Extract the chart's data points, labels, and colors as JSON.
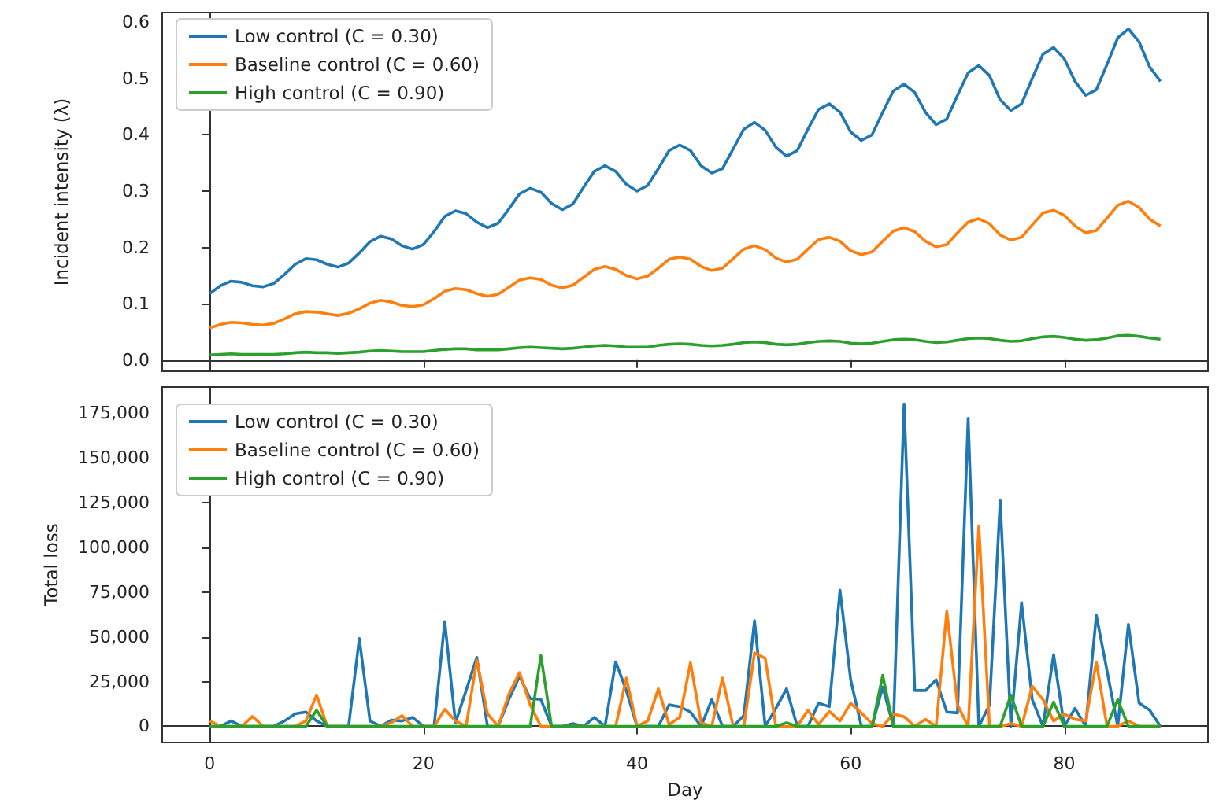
{
  "chart_data": [
    {
      "type": "line",
      "ylabel": "Incident intensity (λ)",
      "x": [
        0,
        1,
        2,
        3,
        4,
        5,
        6,
        7,
        8,
        9,
        10,
        11,
        12,
        13,
        14,
        15,
        16,
        17,
        18,
        19,
        20,
        21,
        22,
        23,
        24,
        25,
        26,
        27,
        28,
        29,
        30,
        31,
        32,
        33,
        34,
        35,
        36,
        37,
        38,
        39,
        40,
        41,
        42,
        43,
        44,
        45,
        46,
        47,
        48,
        49,
        50,
        51,
        52,
        53,
        54,
        55,
        56,
        57,
        58,
        59,
        60,
        61,
        62,
        63,
        64,
        65,
        66,
        67,
        68,
        69,
        70,
        71,
        72,
        73,
        74,
        75,
        76,
        77,
        78,
        79,
        80,
        81,
        82,
        83,
        84,
        85,
        86,
        87,
        88,
        89
      ],
      "series": [
        {
          "name": "Low control (C = 0.30)",
          "color": "#1f77b4",
          "values": [
            0.118,
            0.132,
            0.14,
            0.138,
            0.132,
            0.13,
            0.136,
            0.152,
            0.17,
            0.18,
            0.178,
            0.17,
            0.165,
            0.172,
            0.19,
            0.21,
            0.22,
            0.215,
            0.203,
            0.197,
            0.205,
            0.228,
            0.255,
            0.265,
            0.26,
            0.245,
            0.235,
            0.243,
            0.268,
            0.295,
            0.305,
            0.298,
            0.278,
            0.267,
            0.277,
            0.307,
            0.335,
            0.345,
            0.335,
            0.312,
            0.3,
            0.31,
            0.34,
            0.372,
            0.382,
            0.372,
            0.345,
            0.332,
            0.34,
            0.375,
            0.41,
            0.422,
            0.408,
            0.378,
            0.362,
            0.372,
            0.41,
            0.445,
            0.455,
            0.44,
            0.405,
            0.39,
            0.4,
            0.44,
            0.478,
            0.49,
            0.475,
            0.44,
            0.418,
            0.428,
            0.47,
            0.51,
            0.523,
            0.505,
            0.462,
            0.443,
            0.455,
            0.5,
            0.543,
            0.555,
            0.535,
            0.495,
            0.47,
            0.48,
            0.525,
            0.572,
            0.588,
            0.565,
            0.52,
            0.495
          ]
        },
        {
          "name": "Baseline control (C = 0.60)",
          "color": "#ff7f0e",
          "values": [
            0.057,
            0.063,
            0.067,
            0.066,
            0.063,
            0.062,
            0.065,
            0.073,
            0.082,
            0.086,
            0.085,
            0.082,
            0.079,
            0.083,
            0.091,
            0.101,
            0.106,
            0.103,
            0.097,
            0.095,
            0.098,
            0.109,
            0.122,
            0.127,
            0.125,
            0.118,
            0.113,
            0.117,
            0.129,
            0.142,
            0.146,
            0.143,
            0.133,
            0.128,
            0.133,
            0.147,
            0.161,
            0.166,
            0.161,
            0.15,
            0.144,
            0.149,
            0.163,
            0.179,
            0.183,
            0.179,
            0.166,
            0.159,
            0.163,
            0.18,
            0.197,
            0.203,
            0.196,
            0.181,
            0.174,
            0.179,
            0.197,
            0.214,
            0.218,
            0.211,
            0.194,
            0.187,
            0.192,
            0.211,
            0.229,
            0.235,
            0.228,
            0.211,
            0.201,
            0.205,
            0.226,
            0.245,
            0.251,
            0.242,
            0.222,
            0.213,
            0.218,
            0.24,
            0.261,
            0.266,
            0.257,
            0.238,
            0.226,
            0.23,
            0.252,
            0.275,
            0.282,
            0.271,
            0.25,
            0.238
          ]
        },
        {
          "name": "High control (C = 0.90)",
          "color": "#2ca02c",
          "values": [
            0.009,
            0.01,
            0.011,
            0.01,
            0.01,
            0.01,
            0.01,
            0.011,
            0.013,
            0.014,
            0.013,
            0.013,
            0.012,
            0.013,
            0.014,
            0.016,
            0.017,
            0.016,
            0.015,
            0.015,
            0.015,
            0.017,
            0.019,
            0.02,
            0.02,
            0.018,
            0.018,
            0.018,
            0.02,
            0.022,
            0.023,
            0.022,
            0.021,
            0.02,
            0.021,
            0.023,
            0.025,
            0.026,
            0.025,
            0.023,
            0.023,
            0.023,
            0.026,
            0.028,
            0.029,
            0.028,
            0.026,
            0.025,
            0.026,
            0.028,
            0.031,
            0.032,
            0.031,
            0.028,
            0.027,
            0.028,
            0.031,
            0.033,
            0.034,
            0.033,
            0.03,
            0.029,
            0.03,
            0.033,
            0.036,
            0.037,
            0.036,
            0.033,
            0.031,
            0.032,
            0.035,
            0.038,
            0.039,
            0.038,
            0.035,
            0.033,
            0.034,
            0.038,
            0.041,
            0.042,
            0.04,
            0.037,
            0.035,
            0.036,
            0.039,
            0.043,
            0.044,
            0.042,
            0.039,
            0.037
          ]
        }
      ],
      "xlim": [
        -4.45,
        93.45
      ],
      "xticks": [
        0,
        20,
        40,
        60,
        80
      ],
      "ylim": [
        -0.02,
        0.617
      ],
      "yticks": [
        {
          "value": 0,
          "label": "0.0"
        },
        0.1,
        0.2,
        0.3,
        0.4,
        0.5,
        0.6
      ],
      "tick_labels": "y",
      "legend": "top left"
    },
    {
      "type": "line",
      "xlabel": "Day",
      "ylabel": "Total loss",
      "x": [
        0,
        1,
        2,
        3,
        4,
        5,
        6,
        7,
        8,
        9,
        10,
        11,
        12,
        13,
        14,
        15,
        16,
        17,
        18,
        19,
        20,
        21,
        22,
        23,
        24,
        25,
        26,
        27,
        28,
        29,
        30,
        31,
        32,
        33,
        34,
        35,
        36,
        37,
        38,
        39,
        40,
        41,
        42,
        43,
        44,
        45,
        46,
        47,
        48,
        49,
        50,
        51,
        52,
        53,
        54,
        55,
        56,
        57,
        58,
        59,
        60,
        61,
        62,
        63,
        64,
        65,
        66,
        67,
        68,
        69,
        70,
        71,
        72,
        73,
        74,
        75,
        76,
        77,
        78,
        79,
        80,
        81,
        82,
        83,
        84,
        85,
        86,
        87,
        88,
        89
      ],
      "series": [
        {
          "name": "Low control (C = 0.30)",
          "color": "#1f77b4",
          "values": [
            0,
            0,
            3000,
            0,
            0,
            0,
            0,
            3000,
            7000,
            8000,
            3000,
            0,
            0,
            0,
            49000,
            3000,
            0,
            3500,
            3000,
            5000,
            0,
            0,
            58500,
            2000,
            20000,
            38500,
            0,
            0,
            15000,
            28000,
            15500,
            15000,
            0,
            0,
            1500,
            0,
            5000,
            0,
            36000,
            20000,
            0,
            0,
            0,
            12000,
            11000,
            8000,
            0,
            15000,
            0,
            0,
            6000,
            59000,
            0,
            10000,
            21000,
            0,
            0,
            13000,
            11000,
            76000,
            26000,
            0,
            0,
            22000,
            0,
            180000,
            20000,
            20000,
            26000,
            8000,
            7500,
            172000,
            0,
            12000,
            126000,
            0,
            69000,
            15000,
            0,
            40000,
            0,
            10000,
            0,
            62000,
            31000,
            0,
            57000,
            13000,
            9000,
            0
          ]
        },
        {
          "name": "Baseline control (C = 0.60)",
          "color": "#ff7f0e",
          "values": [
            3000,
            0,
            0,
            0,
            5500,
            0,
            0,
            0,
            0,
            3000,
            17500,
            0,
            0,
            0,
            0,
            0,
            0,
            2000,
            6000,
            0,
            0,
            0,
            9500,
            3000,
            0,
            37000,
            7000,
            0,
            18000,
            30000,
            12000,
            0,
            0,
            0,
            0,
            0,
            0,
            0,
            0,
            27000,
            0,
            3000,
            21000,
            1000,
            5000,
            35500,
            2000,
            0,
            27000,
            0,
            0,
            41000,
            38000,
            0,
            0,
            0,
            9000,
            1000,
            8400,
            3000,
            12900,
            7500,
            1500,
            0,
            6900,
            5400,
            0,
            3900,
            0,
            64300,
            12000,
            0,
            112000,
            0,
            0,
            1500,
            0,
            22400,
            15000,
            3000,
            6900,
            3900,
            3000,
            35900,
            0,
            0,
            3000,
            0,
            0,
            0
          ]
        },
        {
          "name": "High control (C = 0.90)",
          "color": "#2ca02c",
          "values": [
            0,
            0,
            0,
            0,
            0,
            0,
            0,
            0,
            0,
            0,
            9000,
            0,
            0,
            0,
            0,
            0,
            0,
            0,
            0,
            0,
            0,
            0,
            0,
            0,
            0,
            0,
            0,
            0,
            0,
            0,
            0,
            39500,
            0,
            0,
            0,
            0,
            0,
            0,
            0,
            0,
            0,
            0,
            0,
            0,
            0,
            0,
            0,
            0,
            0,
            0,
            0,
            0,
            0,
            0,
            2000,
            0,
            0,
            0,
            0,
            0,
            0,
            0,
            0,
            28500,
            0,
            0,
            0,
            0,
            0,
            0,
            0,
            0,
            0,
            0,
            0,
            17500,
            0,
            0,
            0,
            13500,
            0,
            0,
            0,
            0,
            0,
            15000,
            0,
            0,
            0,
            0
          ]
        }
      ],
      "xlim": [
        -4.45,
        93.45
      ],
      "xticks": [
        0,
        20,
        40,
        60,
        80
      ],
      "ylim": [
        -9025,
        189500
      ],
      "yticks": [
        0,
        {
          "value": 25000,
          "label": "25,000"
        },
        {
          "value": 50000,
          "label": "50,000"
        },
        {
          "value": 75000,
          "label": "75,000"
        },
        {
          "value": 100000,
          "label": "100,000"
        },
        {
          "value": 125000,
          "label": "125,000"
        },
        {
          "value": 150000,
          "label": "150,000"
        },
        {
          "value": 175000,
          "label": "175,000"
        }
      ],
      "legend": "top left"
    }
  ]
}
